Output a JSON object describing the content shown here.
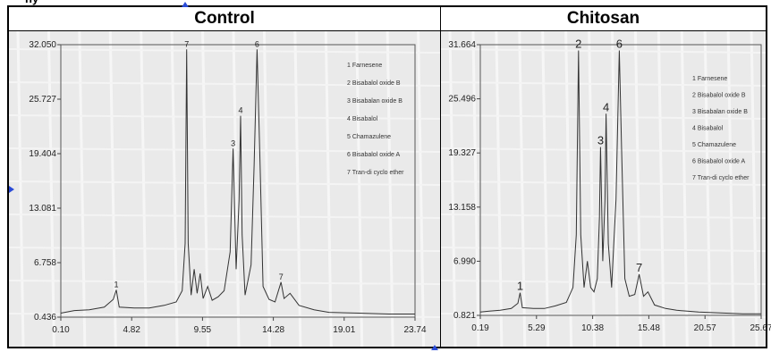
{
  "header": {
    "cut_title": "ny",
    "control": "Control",
    "chitosan": "Chitosan"
  },
  "legend": [
    "1   Farnesene",
    "2   Bisabalol oxide B",
    "3   Bisabalan oxide B",
    "4   Bisabalol",
    "5   Chamazulene",
    "6   Bisabalol oxide A",
    "7   Tran-di cyclo ether"
  ],
  "chart_data": [
    {
      "type": "line",
      "panel": "Control",
      "ylim": [
        0.436,
        32.05
      ],
      "xlim": [
        0.1,
        23.74
      ],
      "y_ticks": [
        "32.050",
        "25.727",
        "19.404",
        "13.081",
        "6.758",
        "0.436"
      ],
      "x_ticks": [
        "0.10",
        "4.82",
        "9.55",
        "14.28",
        "19.01",
        "23.74"
      ],
      "peaks": [
        {
          "label": "1",
          "x": 3.8,
          "y": 3.6
        },
        {
          "label": "7",
          "x": 8.5,
          "y": 31.5
        },
        {
          "label": "3",
          "x": 11.6,
          "y": 20.0
        },
        {
          "label": "4",
          "x": 12.1,
          "y": 23.8
        },
        {
          "label": "6",
          "x": 13.2,
          "y": 31.5
        },
        {
          "label": "7",
          "x": 14.8,
          "y": 4.5
        }
      ],
      "series": [
        {
          "x": [
            0.1,
            1.0,
            2.0,
            3.0,
            3.6,
            3.8,
            4.0,
            5.0,
            6.0,
            7.0,
            7.8,
            8.2,
            8.4,
            8.5,
            8.6,
            8.8,
            9.0,
            9.2,
            9.4,
            9.6,
            9.9,
            10.2,
            10.6,
            11.0,
            11.4,
            11.6,
            11.8,
            12.0,
            12.1,
            12.2,
            12.4,
            12.8,
            13.0,
            13.2,
            13.4,
            13.6,
            14.0,
            14.4,
            14.8,
            15.0,
            15.4,
            16.0,
            17.0,
            18.0,
            20.0,
            22.0,
            23.74
          ],
          "y": [
            0.9,
            1.2,
            1.3,
            1.6,
            2.5,
            3.6,
            1.6,
            1.5,
            1.5,
            1.8,
            2.2,
            3.5,
            9.0,
            31.5,
            9.0,
            3.0,
            6.0,
            3.2,
            5.5,
            2.6,
            4.0,
            2.4,
            2.8,
            3.5,
            8.0,
            20.0,
            6.0,
            14.0,
            23.8,
            10.0,
            3.0,
            6.5,
            18.0,
            31.5,
            18.0,
            4.0,
            2.5,
            2.2,
            4.5,
            2.6,
            3.2,
            1.8,
            1.3,
            1.0,
            0.9,
            0.8,
            0.8
          ]
        }
      ]
    },
    {
      "type": "line",
      "panel": "Chitosan",
      "ylim": [
        0.821,
        31.664
      ],
      "xlim": [
        0.19,
        25.67
      ],
      "y_ticks": [
        "31.664",
        "25.496",
        "19.327",
        "13.158",
        "6.990",
        "0.821"
      ],
      "x_ticks": [
        "0.19",
        "5.29",
        "10.38",
        "15.48",
        "20.57",
        "25.67"
      ],
      "peaks": [
        {
          "label": "1",
          "x": 3.8,
          "y": 3.4
        },
        {
          "label": "2",
          "x": 9.1,
          "y": 31.0
        },
        {
          "label": "3",
          "x": 11.1,
          "y": 20.0
        },
        {
          "label": "4",
          "x": 11.6,
          "y": 23.8
        },
        {
          "label": "6",
          "x": 12.8,
          "y": 31.0
        },
        {
          "label": "7",
          "x": 14.6,
          "y": 5.5
        }
      ],
      "series": [
        {
          "x": [
            0.19,
            1.0,
            2.0,
            3.0,
            3.6,
            3.8,
            4.0,
            5.0,
            6.0,
            7.0,
            8.0,
            8.6,
            8.9,
            9.1,
            9.3,
            9.6,
            9.9,
            10.2,
            10.5,
            10.8,
            11.0,
            11.1,
            11.3,
            11.5,
            11.6,
            11.8,
            12.1,
            12.5,
            12.8,
            13.0,
            13.3,
            13.7,
            14.2,
            14.6,
            15.0,
            15.4,
            16.0,
            17.0,
            18.0,
            20.0,
            22.0,
            24.0,
            25.67
          ],
          "y": [
            1.2,
            1.3,
            1.4,
            1.6,
            2.2,
            3.4,
            1.7,
            1.6,
            1.6,
            1.9,
            2.3,
            4.0,
            10.0,
            31.0,
            10.0,
            4.0,
            7.0,
            4.0,
            3.5,
            5.0,
            12.0,
            20.0,
            7.0,
            14.0,
            23.8,
            9.0,
            4.0,
            14.0,
            31.0,
            20.0,
            5.0,
            3.0,
            3.2,
            5.5,
            3.0,
            3.5,
            2.0,
            1.6,
            1.4,
            1.2,
            1.1,
            1.0,
            1.0
          ]
        }
      ]
    }
  ]
}
